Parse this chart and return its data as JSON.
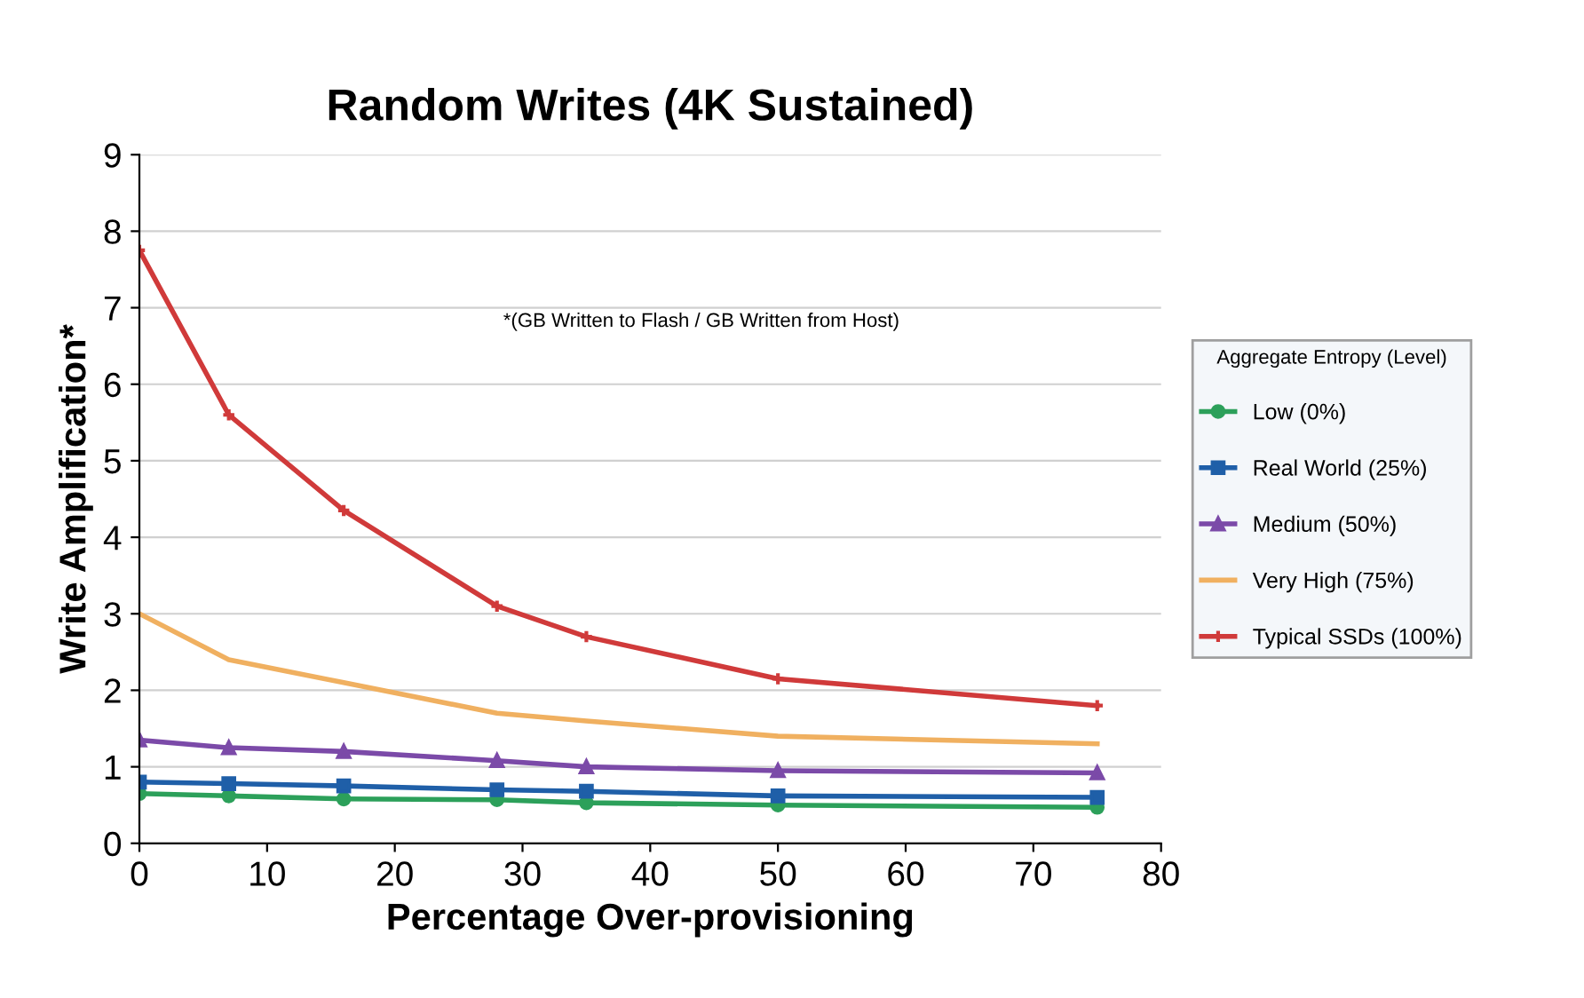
{
  "chart_data": {
    "type": "line",
    "title": "Random Writes (4K Sustained)",
    "xlabel": "Percentage Over-provisioning",
    "ylabel": "Write Amplification*",
    "legend_title": "Aggregate Entropy (Level)",
    "annotations": [
      "*(GB Written to Flash / GB Written from Host)"
    ],
    "x": [
      0,
      7,
      16,
      28,
      35,
      50,
      75
    ],
    "series": [
      {
        "name": "Low (0%)",
        "color": "#2ca05a",
        "marker": "circle",
        "values": [
          0.65,
          0.62,
          0.58,
          0.57,
          0.53,
          0.5,
          0.47
        ]
      },
      {
        "name": "Real World (25%)",
        "color": "#1f5fa8",
        "marker": "square",
        "values": [
          0.8,
          0.78,
          0.75,
          0.7,
          0.68,
          0.62,
          0.6
        ]
      },
      {
        "name": "Medium (50%)",
        "color": "#7b4aa8",
        "marker": "triangle",
        "values": [
          1.35,
          1.25,
          1.2,
          1.08,
          1.0,
          0.95,
          0.92
        ]
      },
      {
        "name": "Very High (75%)",
        "color": "#f0b060",
        "marker": "none",
        "values": [
          3.0,
          2.4,
          2.1,
          1.7,
          1.6,
          1.4,
          1.3
        ]
      },
      {
        "name": "Typical SSDs (100%)",
        "color": "#d03a3a",
        "marker": "cross",
        "values": [
          7.75,
          5.6,
          4.35,
          3.1,
          2.7,
          2.15,
          1.8
        ]
      }
    ],
    "xlim": [
      0,
      80
    ],
    "xticks": [
      0,
      10,
      20,
      30,
      40,
      50,
      60,
      70,
      80
    ],
    "ylim": [
      0,
      9
    ],
    "yticks": [
      0,
      1,
      2,
      3,
      4,
      5,
      6,
      7,
      8,
      9
    ],
    "grid": "y",
    "legend": "right",
    "line_style": "solid"
  }
}
